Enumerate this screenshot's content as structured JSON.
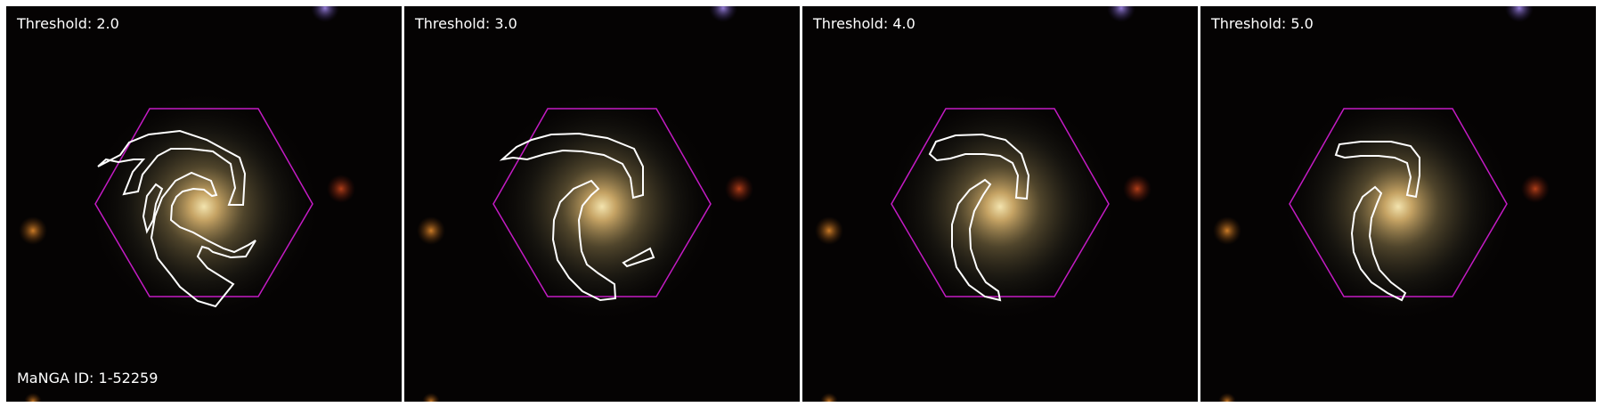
{
  "panels": [
    {
      "threshold_label": "Threshold: 2.0"
    },
    {
      "threshold_label": "Threshold: 3.0"
    },
    {
      "threshold_label": "Threshold: 4.0"
    },
    {
      "threshold_label": "Threshold: 5.0"
    }
  ],
  "manga_id_label": "MaNGA ID: 1-52259",
  "colors": {
    "hexagon": "#c41bc4",
    "contour": "#ffffff",
    "background": "#050303",
    "galaxy_core": "#f3d08a"
  }
}
